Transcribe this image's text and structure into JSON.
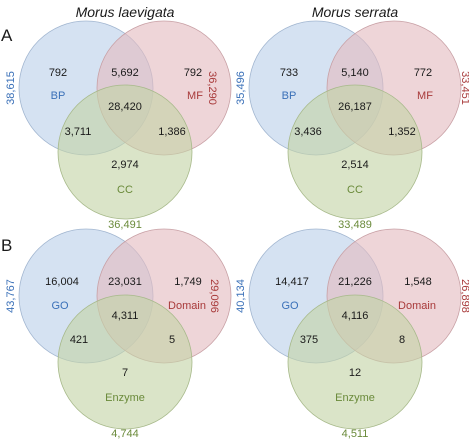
{
  "colors": {
    "blue_fill": "#bcd0ea",
    "red_fill": "#e3bcc0",
    "green_fill": "#c3d3a6",
    "blue_text": "#3a70b8",
    "red_text": "#a83a3a",
    "green_text": "#6a8a3a"
  },
  "panel_a": {
    "label": "A",
    "left": {
      "species": "Morus laevigata",
      "sets": {
        "a": "BP",
        "b": "MF",
        "c": "CC"
      },
      "totals": {
        "a": "38,615",
        "b": "36,290",
        "c": "36,491"
      },
      "regions": {
        "a_only": "792",
        "ab": "5,692",
        "b_only": "792",
        "ac": "3,711",
        "abc": "28,420",
        "bc": "1,386",
        "c_only": "2,974"
      }
    },
    "right": {
      "species": "Morus serrata",
      "sets": {
        "a": "BP",
        "b": "MF",
        "c": "CC"
      },
      "totals": {
        "a": "35,496",
        "b": "33,451",
        "c": "33,489"
      },
      "regions": {
        "a_only": "733",
        "ab": "5,140",
        "b_only": "772",
        "ac": "3,436",
        "abc": "26,187",
        "bc": "1,352",
        "c_only": "2,514"
      }
    }
  },
  "panel_b": {
    "label": "B",
    "left": {
      "sets": {
        "a": "GO",
        "b": "Domain",
        "c": "Enzyme"
      },
      "totals": {
        "a": "43,767",
        "b": "29,096",
        "c": "4,744"
      },
      "regions": {
        "a_only": "16,004",
        "ab": "23,031",
        "b_only": "1,749",
        "ac": "421",
        "abc": "4,311",
        "bc": "5",
        "c_only": "7"
      }
    },
    "right": {
      "sets": {
        "a": "GO",
        "b": "Domain",
        "c": "Enzyme"
      },
      "totals": {
        "a": "40,134",
        "b": "26,898",
        "c": "4,511"
      },
      "regions": {
        "a_only": "14,417",
        "ab": "21,226",
        "b_only": "1,548",
        "ac": "375",
        "abc": "4,116",
        "bc": "8",
        "c_only": "12"
      }
    }
  }
}
